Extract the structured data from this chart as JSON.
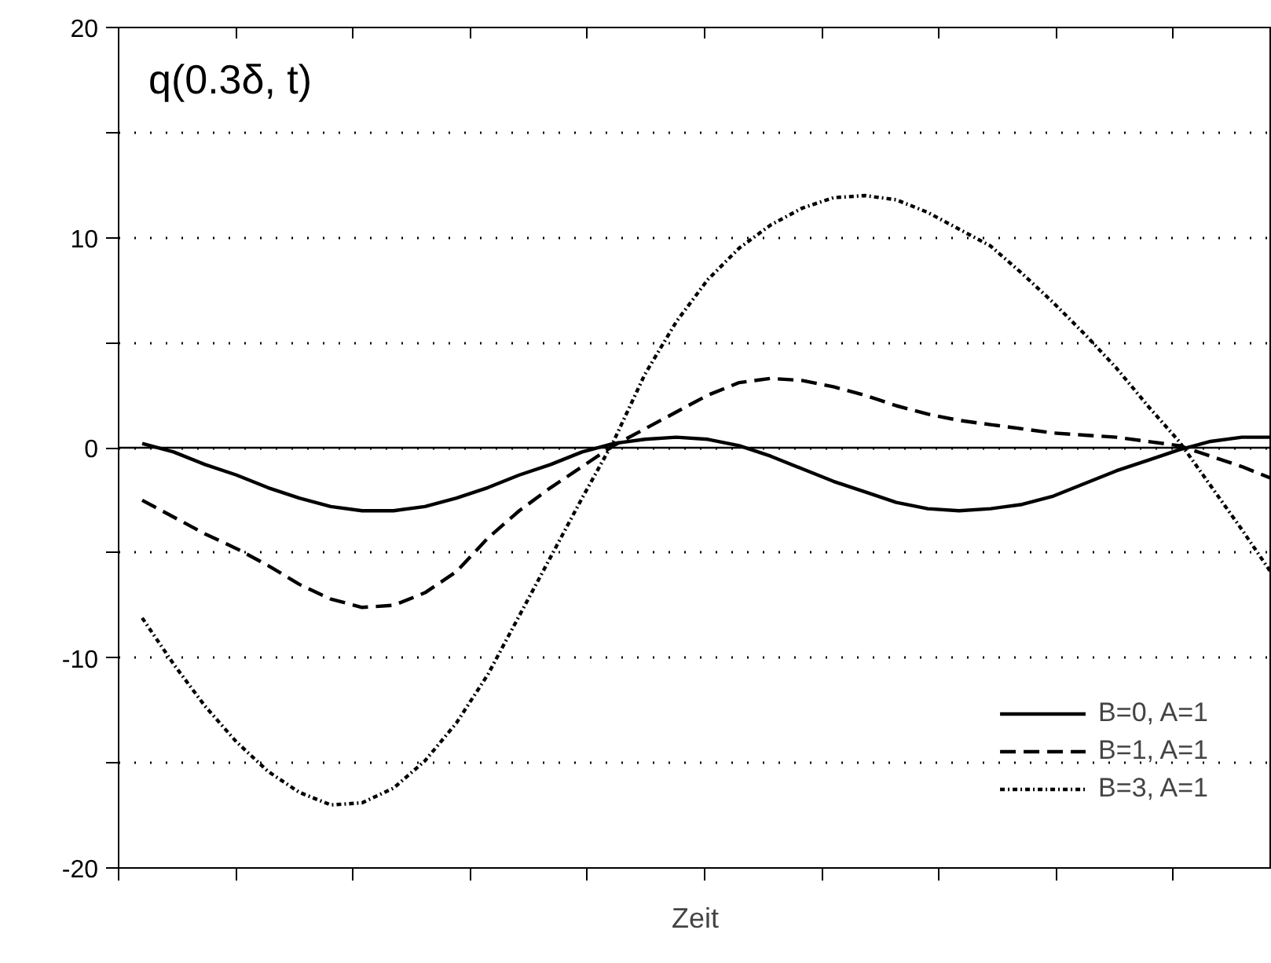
{
  "chart_data": {
    "type": "line",
    "title": "q(0.3δ, t)",
    "xlabel": "Zeit",
    "categories": [
      null,
      null,
      null,
      null,
      null,
      null,
      null,
      null,
      null,
      null,
      null,
      null,
      null,
      null,
      null,
      null,
      null,
      null,
      null,
      null,
      null,
      null,
      null,
      null,
      null,
      null,
      null,
      null,
      null,
      null,
      null,
      null,
      null,
      null,
      null,
      null,
      null
    ],
    "series": [
      {
        "name": "B=0, A=1",
        "color": "#000000",
        "line_style": "solid",
        "values": [
          0.2,
          -0.2,
          -0.8,
          -1.3,
          -1.9,
          -2.4,
          -2.8,
          -3.0,
          -3.0,
          -2.8,
          -2.4,
          -1.9,
          -1.3,
          -0.8,
          -0.2,
          0.2,
          0.4,
          0.5,
          0.4,
          0.1,
          -0.4,
          -1.0,
          -1.6,
          -2.1,
          -2.6,
          -2.9,
          -3.0,
          -2.9,
          -2.7,
          -2.3,
          -1.7,
          -1.1,
          -0.6,
          -0.1,
          0.3,
          0.5,
          0.5
        ]
      },
      {
        "name": "B=1, A=1",
        "color": "#000000",
        "line_style": "dashed",
        "values": [
          -2.5,
          -3.3,
          -4.1,
          -4.8,
          -5.6,
          -6.5,
          -7.2,
          -7.6,
          -7.5,
          -6.9,
          -5.9,
          -4.3,
          -3.0,
          -1.9,
          -0.9,
          0.1,
          0.9,
          1.7,
          2.5,
          3.1,
          3.3,
          3.2,
          2.9,
          2.5,
          2.0,
          1.6,
          1.3,
          1.1,
          0.9,
          0.7,
          0.6,
          0.5,
          0.3,
          0.1,
          -0.4,
          -0.9,
          -1.5
        ]
      },
      {
        "name": "B=3, A=1",
        "color": "#000000",
        "line_style": "dotted",
        "values": [
          -8.1,
          -10.3,
          -12.3,
          -14.0,
          -15.4,
          -16.4,
          -17.0,
          -16.9,
          -16.2,
          -14.9,
          -13.1,
          -10.8,
          -8.0,
          -5.2,
          -2.4,
          0.3,
          3.5,
          6.0,
          8.0,
          9.5,
          10.6,
          11.4,
          11.9,
          12.0,
          11.8,
          11.2,
          10.4,
          9.6,
          8.3,
          6.9,
          5.4,
          3.8,
          2.0,
          0.3,
          -1.8,
          -3.9,
          -6.1
        ]
      }
    ],
    "ylim": [
      -20,
      20
    ],
    "yticks": [
      -20,
      {
        "value": -15,
        "label": null
      },
      -10,
      {
        "value": -5,
        "label": null
      },
      0,
      {
        "value": 5,
        "label": null
      },
      10,
      {
        "value": 15,
        "label": null
      },
      20
    ],
    "grid": "y",
    "ref_lines": [
      {
        "axis": "y",
        "value": 0,
        "color": "#000000",
        "line_style": "solid"
      }
    ],
    "legend": "bottom right"
  }
}
